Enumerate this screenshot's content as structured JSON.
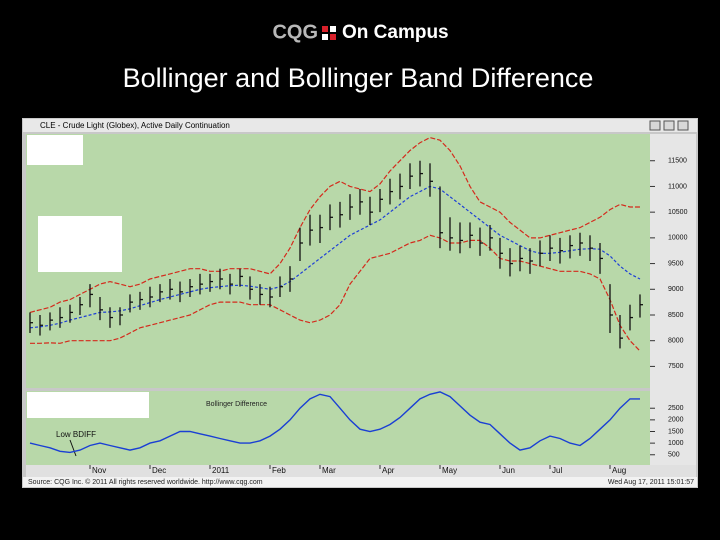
{
  "header": {
    "logo_left": "CQG",
    "logo_right": "On Campus",
    "title": "Bollinger and Bollinger Band Difference"
  },
  "window_title": "CLE - Crude Light (Globex), Active Daily Continuation",
  "status_left": "Source: CQG Inc. © 2011 All rights reserved worldwide. http://www.cqg.com",
  "status_right": "Wed Aug 17, 2011 15:01:57",
  "chart_data": [
    {
      "type": "ohlc",
      "categories": [
        null,
        null,
        null,
        null,
        null,
        null,
        "Nov",
        null,
        null,
        null,
        null,
        null,
        "Dec",
        null,
        null,
        null,
        null,
        null,
        "2011",
        null,
        null,
        null,
        null,
        null,
        "Feb",
        null,
        null,
        null,
        null,
        "Mar",
        null,
        null,
        null,
        null,
        null,
        "Apr",
        null,
        null,
        null,
        null,
        null,
        "May",
        null,
        null,
        null,
        null,
        null,
        "Jun",
        null,
        null,
        null,
        null,
        "Jul",
        null,
        null,
        null,
        null,
        null,
        "Aug",
        null,
        null,
        null
      ],
      "high": [
        8550,
        8500,
        8550,
        8650,
        8700,
        8850,
        9100,
        8850,
        8650,
        8650,
        8900,
        8950,
        9050,
        9100,
        9200,
        9150,
        9200,
        9300,
        9300,
        9400,
        9300,
        9400,
        9250,
        9100,
        9050,
        9250,
        9450,
        10200,
        10450,
        10450,
        10650,
        10700,
        10850,
        10950,
        10800,
        10950,
        11150,
        11250,
        11450,
        11500,
        11450,
        11000,
        10400,
        10300,
        10300,
        10200,
        10250,
        10000,
        9800,
        9850,
        9800,
        9950,
        10050,
        10000,
        10050,
        10100,
        10050,
        9900,
        9100,
        8500,
        8700,
        8900
      ],
      "low": [
        8150,
        8100,
        8200,
        8250,
        8350,
        8500,
        8650,
        8400,
        8250,
        8300,
        8550,
        8600,
        8650,
        8750,
        8800,
        8750,
        8850,
        8900,
        8950,
        9000,
        8900,
        9050,
        8800,
        8700,
        8650,
        8850,
        8950,
        9550,
        9850,
        9900,
        10150,
        10200,
        10350,
        10450,
        10250,
        10500,
        10650,
        10750,
        10950,
        11000,
        10800,
        9800,
        9750,
        9700,
        9800,
        9650,
        9750,
        9400,
        9250,
        9350,
        9300,
        9450,
        9550,
        9500,
        9600,
        9650,
        9550,
        9300,
        8150,
        7850,
        8200,
        8450
      ],
      "close": [
        8350,
        8300,
        8400,
        8450,
        8550,
        8700,
        8900,
        8600,
        8450,
        8500,
        8750,
        8800,
        8850,
        8950,
        9000,
        8950,
        9050,
        9100,
        9150,
        9200,
        9100,
        9250,
        9000,
        8900,
        8850,
        9050,
        9200,
        9900,
        10150,
        10200,
        10400,
        10450,
        10600,
        10700,
        10500,
        10750,
        10900,
        11000,
        11200,
        11250,
        11100,
        10100,
        10000,
        9950,
        10050,
        9900,
        10000,
        9700,
        9500,
        9600,
        9550,
        9700,
        9800,
        9750,
        9850,
        9900,
        9800,
        9600,
        8500,
        8050,
        8450,
        8700
      ],
      "bar_color": "#111111",
      "bands": [
        {
          "color": "#d42a1c",
          "values": [
            8550,
            8600,
            8650,
            8750,
            8800,
            8900,
            9000,
            9100,
            9150,
            9100,
            9050,
            9100,
            9200,
            9250,
            9300,
            9350,
            9400,
            9400,
            9350,
            9350,
            9400,
            9400,
            9400,
            9350,
            9300,
            9500,
            9800,
            10200,
            10550,
            10800,
            11000,
            11100,
            11000,
            10950,
            10900,
            11050,
            11300,
            11500,
            11700,
            11850,
            11950,
            11900,
            11700,
            11400,
            11000,
            10700,
            10600,
            10500,
            10300,
            10150,
            10000,
            10000,
            10050,
            10100,
            10150,
            10200,
            10300,
            10400,
            10550,
            10650,
            10600,
            10600
          ]
        },
        {
          "color": "#1e3fd6",
          "values": [
            8250,
            8270,
            8300,
            8340,
            8400,
            8450,
            8500,
            8550,
            8560,
            8580,
            8620,
            8680,
            8740,
            8800,
            8850,
            8900,
            8950,
            9000,
            9030,
            9050,
            9070,
            9080,
            9060,
            9030,
            9000,
            9050,
            9150,
            9300,
            9450,
            9600,
            9750,
            9900,
            10050,
            10150,
            10250,
            10350,
            10500,
            10650,
            10800,
            10900,
            11000,
            10950,
            10800,
            10650,
            10500,
            10350,
            10200,
            10050,
            9950,
            9850,
            9750,
            9700,
            9700,
            9720,
            9750,
            9780,
            9790,
            9780,
            9650,
            9450,
            9300,
            9200
          ]
        },
        {
          "color": "#d42a1c",
          "values": [
            7950,
            7950,
            7960,
            7950,
            8000,
            8000,
            8000,
            8000,
            8000,
            8050,
            8150,
            8250,
            8300,
            8350,
            8400,
            8450,
            8500,
            8600,
            8700,
            8750,
            8750,
            8750,
            8700,
            8700,
            8700,
            8600,
            8500,
            8400,
            8350,
            8400,
            8500,
            8700,
            9100,
            9350,
            9600,
            9650,
            9700,
            9800,
            9900,
            9950,
            10050,
            10000,
            9900,
            9900,
            9950,
            9950,
            9800,
            9600,
            9550,
            9550,
            9500,
            9450,
            9400,
            9350,
            9350,
            9350,
            9300,
            9200,
            8800,
            8300,
            8000,
            7800
          ]
        }
      ],
      "ylim": [
        7080,
        12020
      ],
      "yticks": [
        7500,
        8000,
        8500,
        9000,
        9500,
        10000,
        10500,
        11000,
        11500
      ]
    },
    {
      "type": "line",
      "values": [
        1000,
        900,
        800,
        650,
        600,
        700,
        900,
        1000,
        900,
        800,
        700,
        800,
        1000,
        1100,
        1300,
        1500,
        1500,
        1400,
        1300,
        1200,
        1100,
        1000,
        1000,
        1100,
        1300,
        1600,
        2000,
        2500,
        2900,
        3100,
        3000,
        2500,
        2000,
        1600,
        1500,
        1600,
        1800,
        2100,
        2500,
        2900,
        3100,
        3200,
        3000,
        2600,
        2200,
        1900,
        1800,
        1400,
        1000,
        700,
        800,
        1100,
        1300,
        1200,
        1000,
        900,
        1200,
        1600,
        2000,
        2500,
        2900,
        2900
      ],
      "color": "#1a3fd4",
      "ylim": [
        60,
        3240
      ],
      "yticks": [
        500,
        1000,
        1500,
        2000,
        2500
      ],
      "annotations": [
        "Bollinger Difference",
        "Low BDIFF"
      ]
    }
  ]
}
